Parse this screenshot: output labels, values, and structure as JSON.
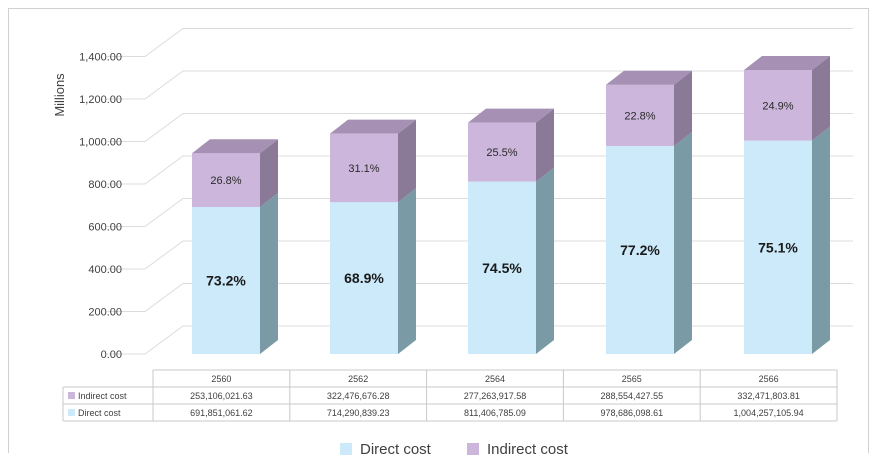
{
  "chart_data": {
    "type": "bar",
    "stacked": true,
    "three_d": true,
    "ylabel": "Millions",
    "ylim": [
      0,
      1400
    ],
    "yticks": [
      "0.00",
      "200.00",
      "400.00",
      "600.00",
      "800.00",
      "1,000.00",
      "1,200.00",
      "1,400.00"
    ],
    "grid": true,
    "legend_position": "bottom",
    "categories": [
      "2560",
      "2562",
      "2564",
      "2565",
      "2566"
    ],
    "series": [
      {
        "name": "Direct cost",
        "color": "#cdeafb",
        "side_color": "#7a9aa6",
        "values": [
          691.85,
          714.29,
          811.41,
          978.69,
          1004.26
        ],
        "table_values": [
          "691,851,061.62",
          "714,290,839.23",
          "811,406,785.09",
          "978,686,098.61",
          "1,004,257,105.94"
        ],
        "percent_labels": [
          "73.2%",
          "68.9%",
          "74.5%",
          "77.2%",
          "75.1%"
        ]
      },
      {
        "name": "Indirect cost",
        "color": "#ccb6dc",
        "side_color": "#8a7a98",
        "top_color": "#a690b4",
        "values": [
          253.11,
          322.48,
          277.26,
          288.55,
          332.47
        ],
        "table_values": [
          "253,106,021.63",
          "322,476,676.28",
          "277,263,917.58",
          "288,554,427.55",
          "332,471,803.81"
        ],
        "percent_labels": [
          "26.8%",
          "31.1%",
          "25.5%",
          "22.8%",
          "24.9%"
        ]
      }
    ]
  }
}
